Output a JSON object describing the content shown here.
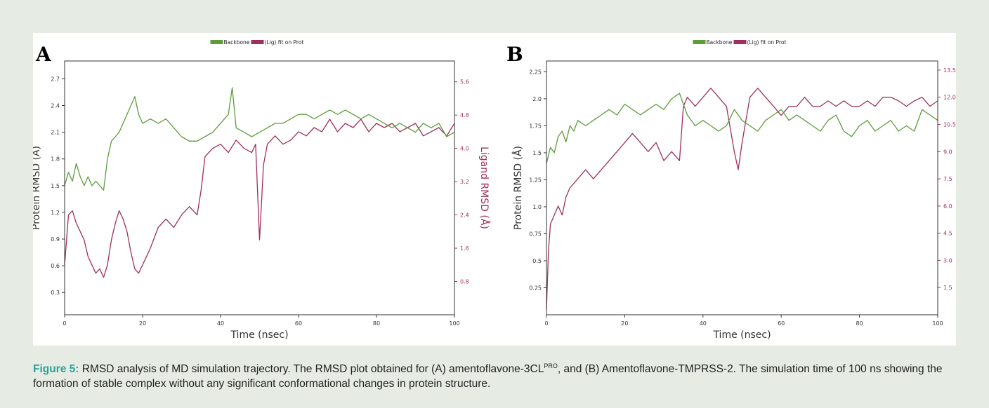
{
  "caption": {
    "label": "Figure 5:",
    "text_part1": " RMSD analysis of MD simulation trajectory. The RMSD plot obtained for (A) amentoflavone-3CL",
    "superscript": "PRO",
    "text_part2": ", and (B) Amentoflavone-TMPRSS-2. The simulation time of 100 ns showing the formation of stable complex without any significant conformational changes in protein structure."
  },
  "chart_data": [
    {
      "panel_label": "A",
      "type": "line",
      "legend": {
        "placement": "top-center",
        "entries": [
          "Backbone",
          "(Lig) fit on Prot"
        ]
      },
      "xlabel": "Time (nsec)",
      "ylabel": "Protein RMSD (Å)",
      "ylabel_right": "Ligand RMSD (Å)",
      "xlim": [
        0,
        100
      ],
      "ylim": [
        0.05,
        2.9
      ],
      "ylim_right": [
        0.0,
        6.1
      ],
      "x_ticks": [
        0,
        20,
        40,
        60,
        80,
        100
      ],
      "y_ticks": [
        0.3,
        0.6,
        0.9,
        1.2,
        1.5,
        1.8,
        2.1,
        2.4,
        2.7
      ],
      "y_ticks_right": [
        0.8,
        1.6,
        2.4,
        3.2,
        4.0,
        4.8,
        5.6
      ],
      "grid": false,
      "series": [
        {
          "name": "Backbone",
          "axis": "left",
          "color": "#5d9c3a",
          "x": [
            0,
            1,
            2,
            3,
            4,
            5,
            6,
            7,
            8,
            9,
            10,
            11,
            12,
            13,
            14,
            15,
            16,
            17,
            18,
            19,
            20,
            22,
            24,
            26,
            28,
            30,
            32,
            34,
            36,
            38,
            40,
            42,
            43,
            44,
            46,
            48,
            50,
            52,
            54,
            56,
            58,
            60,
            62,
            64,
            66,
            68,
            70,
            72,
            74,
            76,
            78,
            80,
            82,
            84,
            86,
            88,
            90,
            92,
            94,
            96,
            98,
            100
          ],
          "y": [
            1.5,
            1.65,
            1.55,
            1.75,
            1.6,
            1.5,
            1.6,
            1.5,
            1.55,
            1.5,
            1.45,
            1.8,
            2.0,
            2.05,
            2.1,
            2.2,
            2.3,
            2.4,
            2.5,
            2.3,
            2.2,
            2.25,
            2.2,
            2.25,
            2.15,
            2.05,
            2.0,
            2.0,
            2.05,
            2.1,
            2.2,
            2.3,
            2.6,
            2.15,
            2.1,
            2.05,
            2.1,
            2.15,
            2.2,
            2.2,
            2.25,
            2.3,
            2.3,
            2.25,
            2.3,
            2.35,
            2.3,
            2.35,
            2.3,
            2.25,
            2.3,
            2.25,
            2.2,
            2.15,
            2.2,
            2.15,
            2.1,
            2.2,
            2.15,
            2.2,
            2.05,
            2.1
          ]
        },
        {
          "name": "(Lig) fit on Prot",
          "axis": "right",
          "color": "#9e2f5e",
          "x": [
            0,
            1,
            2,
            3,
            4,
            5,
            6,
            7,
            8,
            9,
            10,
            11,
            12,
            13,
            14,
            15,
            16,
            17,
            18,
            19,
            20,
            22,
            24,
            26,
            28,
            30,
            32,
            34,
            35,
            36,
            38,
            40,
            42,
            44,
            46,
            48,
            49,
            50,
            51,
            52,
            54,
            56,
            58,
            60,
            62,
            64,
            66,
            68,
            70,
            72,
            74,
            76,
            78,
            80,
            82,
            84,
            86,
            88,
            90,
            92,
            94,
            96,
            98,
            100
          ],
          "y": [
            1.2,
            2.4,
            2.5,
            2.2,
            2.0,
            1.8,
            1.4,
            1.2,
            1.0,
            1.1,
            0.9,
            1.2,
            1.8,
            2.2,
            2.5,
            2.3,
            2.0,
            1.5,
            1.1,
            1.0,
            1.2,
            1.6,
            2.1,
            2.3,
            2.1,
            2.4,
            2.6,
            2.4,
            3.0,
            3.8,
            4.0,
            4.1,
            3.9,
            4.2,
            4.0,
            3.9,
            4.1,
            1.8,
            3.6,
            4.1,
            4.3,
            4.1,
            4.2,
            4.4,
            4.3,
            4.5,
            4.4,
            4.7,
            4.4,
            4.6,
            4.5,
            4.7,
            4.4,
            4.6,
            4.5,
            4.6,
            4.4,
            4.5,
            4.6,
            4.3,
            4.4,
            4.5,
            4.3,
            4.6
          ]
        }
      ]
    },
    {
      "panel_label": "B",
      "type": "line",
      "legend": {
        "placement": "top-center",
        "entries": [
          "Backbone",
          "(Lig) fit on Prot"
        ]
      },
      "xlabel": "Time (nsec)",
      "ylabel": "Protein RMSD (Å)",
      "ylabel_right": "Ligand RMSD (Å)",
      "xlim": [
        0,
        100
      ],
      "ylim": [
        0.0,
        2.35
      ],
      "ylim_right": [
        0.0,
        14.0
      ],
      "x_ticks": [
        0,
        20,
        40,
        60,
        80,
        100
      ],
      "y_ticks": [
        0.25,
        0.5,
        0.75,
        1.0,
        1.25,
        1.5,
        1.75,
        2.0,
        2.25
      ],
      "y_ticks_right": [
        1.5,
        3.0,
        4.5,
        6.0,
        7.5,
        9.0,
        10.5,
        12.0,
        13.5
      ],
      "grid": false,
      "series": [
        {
          "name": "Backbone",
          "axis": "left",
          "color": "#5d9c3a",
          "x": [
            0,
            1,
            2,
            3,
            4,
            5,
            6,
            7,
            8,
            10,
            12,
            14,
            16,
            18,
            20,
            22,
            24,
            26,
            28,
            30,
            32,
            34,
            36,
            38,
            40,
            42,
            44,
            46,
            48,
            50,
            52,
            54,
            56,
            58,
            60,
            62,
            64,
            66,
            68,
            70,
            72,
            74,
            76,
            78,
            80,
            82,
            84,
            86,
            88,
            90,
            92,
            94,
            96,
            98,
            100
          ],
          "y": [
            1.4,
            1.55,
            1.5,
            1.65,
            1.7,
            1.6,
            1.75,
            1.7,
            1.8,
            1.75,
            1.8,
            1.85,
            1.9,
            1.85,
            1.95,
            1.9,
            1.85,
            1.9,
            1.95,
            1.9,
            2.0,
            2.05,
            1.85,
            1.75,
            1.8,
            1.75,
            1.7,
            1.75,
            1.9,
            1.8,
            1.75,
            1.7,
            1.8,
            1.85,
            1.9,
            1.8,
            1.85,
            1.8,
            1.75,
            1.7,
            1.8,
            1.85,
            1.7,
            1.65,
            1.75,
            1.8,
            1.7,
            1.75,
            1.8,
            1.7,
            1.75,
            1.7,
            1.9,
            1.85,
            1.8
          ]
        },
        {
          "name": "(Lig) fit on Prot",
          "axis": "right",
          "color": "#9e2f5e",
          "x": [
            0,
            0.5,
            1,
            2,
            3,
            4,
            5,
            6,
            8,
            10,
            12,
            14,
            16,
            18,
            20,
            22,
            24,
            26,
            28,
            30,
            32,
            34,
            35,
            36,
            38,
            40,
            42,
            44,
            46,
            48,
            49,
            50,
            52,
            54,
            56,
            58,
            60,
            62,
            64,
            66,
            68,
            70,
            72,
            74,
            76,
            78,
            80,
            82,
            84,
            86,
            88,
            90,
            92,
            94,
            96,
            98,
            100
          ],
          "y": [
            0.3,
            3.5,
            5.0,
            5.5,
            6.0,
            5.5,
            6.5,
            7.0,
            7.5,
            8.0,
            7.5,
            8.0,
            8.5,
            9.0,
            9.5,
            10.0,
            9.5,
            9.0,
            9.5,
            8.5,
            9.0,
            8.5,
            11.5,
            12.0,
            11.5,
            12.0,
            12.5,
            12.0,
            11.5,
            9.0,
            8.0,
            9.5,
            12.0,
            12.5,
            12.0,
            11.5,
            11.0,
            11.5,
            11.5,
            12.0,
            11.5,
            11.5,
            11.8,
            11.5,
            11.8,
            11.5,
            11.5,
            11.8,
            11.5,
            12.0,
            12.0,
            11.8,
            11.5,
            11.8,
            12.0,
            11.5,
            11.8
          ]
        }
      ]
    }
  ]
}
